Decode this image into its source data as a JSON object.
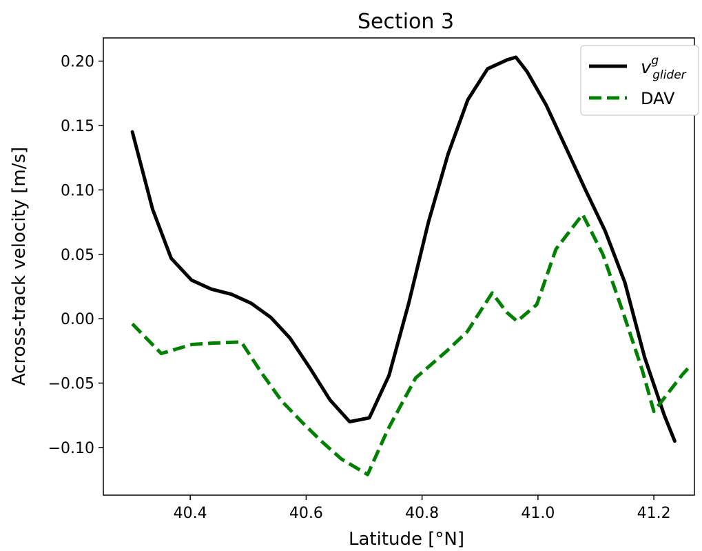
{
  "chart_data": {
    "type": "line",
    "title": "Section 3",
    "xlabel": "Latitude [°N]",
    "ylabel": "Across-track velocity [m/s]",
    "xlim": [
      40.25,
      41.27
    ],
    "ylim": [
      -0.137,
      0.218
    ],
    "xticks": [
      40.4,
      40.6,
      40.8,
      41.0,
      41.2
    ],
    "xtick_labels": [
      "40.4",
      "40.6",
      "40.8",
      "41.0",
      "41.2"
    ],
    "yticks": [
      -0.1,
      -0.05,
      0.0,
      0.05,
      0.1,
      0.15,
      0.2
    ],
    "ytick_labels": [
      "−0.10",
      "−0.05",
      "0.00",
      "0.05",
      "0.10",
      "0.15",
      "0.20"
    ],
    "grid": false,
    "legend_position": "top-right",
    "series": [
      {
        "name": "v_glider^g",
        "legend_base": "v",
        "legend_sup": "g",
        "legend_sub": "glider",
        "color": "#000000",
        "style": "solid",
        "x": [
          40.3,
          40.335,
          40.367,
          40.402,
          40.436,
          40.471,
          40.505,
          40.539,
          40.572,
          40.606,
          40.641,
          40.675,
          40.709,
          40.743,
          40.777,
          40.811,
          40.845,
          40.879,
          40.913,
          40.947,
          40.962,
          40.981,
          41.014,
          41.048,
          41.082,
          41.116,
          41.15,
          41.184,
          41.218,
          41.236
        ],
        "y": [
          0.145,
          0.085,
          0.047,
          0.03,
          0.023,
          0.019,
          0.012,
          0.001,
          -0.015,
          -0.038,
          -0.063,
          -0.08,
          -0.077,
          -0.044,
          0.012,
          0.075,
          0.128,
          0.17,
          0.194,
          0.201,
          0.203,
          0.192,
          0.166,
          0.133,
          0.1,
          0.068,
          0.028,
          -0.03,
          -0.075,
          -0.095
        ]
      },
      {
        "name": "DAV",
        "color": "#008000",
        "style": "dashed",
        "x": [
          40.3,
          40.35,
          40.403,
          40.437,
          40.488,
          40.523,
          40.558,
          40.592,
          40.626,
          40.661,
          40.706,
          40.741,
          40.789,
          40.843,
          40.878,
          40.921,
          40.946,
          40.964,
          40.998,
          41.031,
          41.077,
          41.112,
          41.146,
          41.18,
          41.2,
          41.25,
          41.264
        ],
        "y": [
          -0.004,
          -0.027,
          -0.02,
          -0.019,
          -0.018,
          -0.042,
          -0.064,
          -0.08,
          -0.095,
          -0.109,
          -0.121,
          -0.086,
          -0.046,
          -0.025,
          -0.01,
          0.02,
          0.005,
          -0.002,
          0.011,
          0.054,
          0.081,
          0.05,
          0.006,
          -0.04,
          -0.072,
          -0.043,
          -0.036
        ]
      }
    ]
  }
}
